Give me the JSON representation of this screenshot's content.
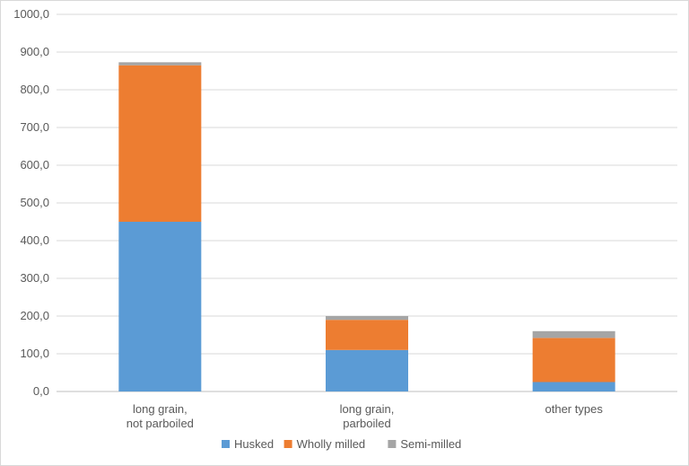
{
  "chart_data": {
    "type": "bar",
    "stacked": true,
    "categories": [
      [
        "long grain,",
        "not parboiled"
      ],
      [
        "long grain,",
        "parboiled"
      ],
      [
        "other types"
      ]
    ],
    "series": [
      {
        "name": "Husked",
        "color": "#5B9BD5",
        "values": [
          450,
          110,
          25
        ]
      },
      {
        "name": "Wholly milled",
        "color": "#ED7D31",
        "values": [
          415,
          80,
          117
        ]
      },
      {
        "name": "Semi-milled",
        "color": "#A5A5A5",
        "values": [
          8,
          10,
          18
        ]
      }
    ],
    "y_ticks": [
      "0,0",
      "100,0",
      "200,0",
      "300,0",
      "400,0",
      "500,0",
      "600,0",
      "700,0",
      "800,0",
      "900,0",
      "1000,0"
    ],
    "ylim": [
      0,
      1000
    ],
    "y_step": 100,
    "grid": true,
    "legend_position": "bottom"
  }
}
